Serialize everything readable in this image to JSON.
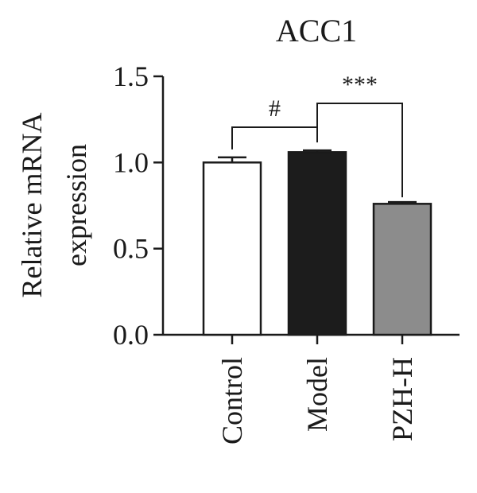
{
  "chart_data": {
    "type": "bar",
    "title": "ACC1",
    "ylabel_lines": [
      "Relative mRNA",
      "expression"
    ],
    "xlabel": "",
    "ylim": [
      0,
      1.5
    ],
    "yticks": [
      "0.0",
      "0.5",
      "1.0",
      "1.5"
    ],
    "categories": [
      "Control",
      "Model",
      "PZH-H"
    ],
    "values": [
      1.0,
      1.06,
      0.76
    ],
    "errors": [
      0.03,
      0.01,
      0.01
    ],
    "bar_colors": [
      "#ffffff",
      "#1c1c1c",
      "#8c8c8c"
    ],
    "grid": false,
    "legend": "none",
    "significance": [
      {
        "from": "Control",
        "to": "Model",
        "label": "#"
      },
      {
        "from": "Model",
        "to": "PZH-H",
        "label": "***"
      }
    ]
  }
}
